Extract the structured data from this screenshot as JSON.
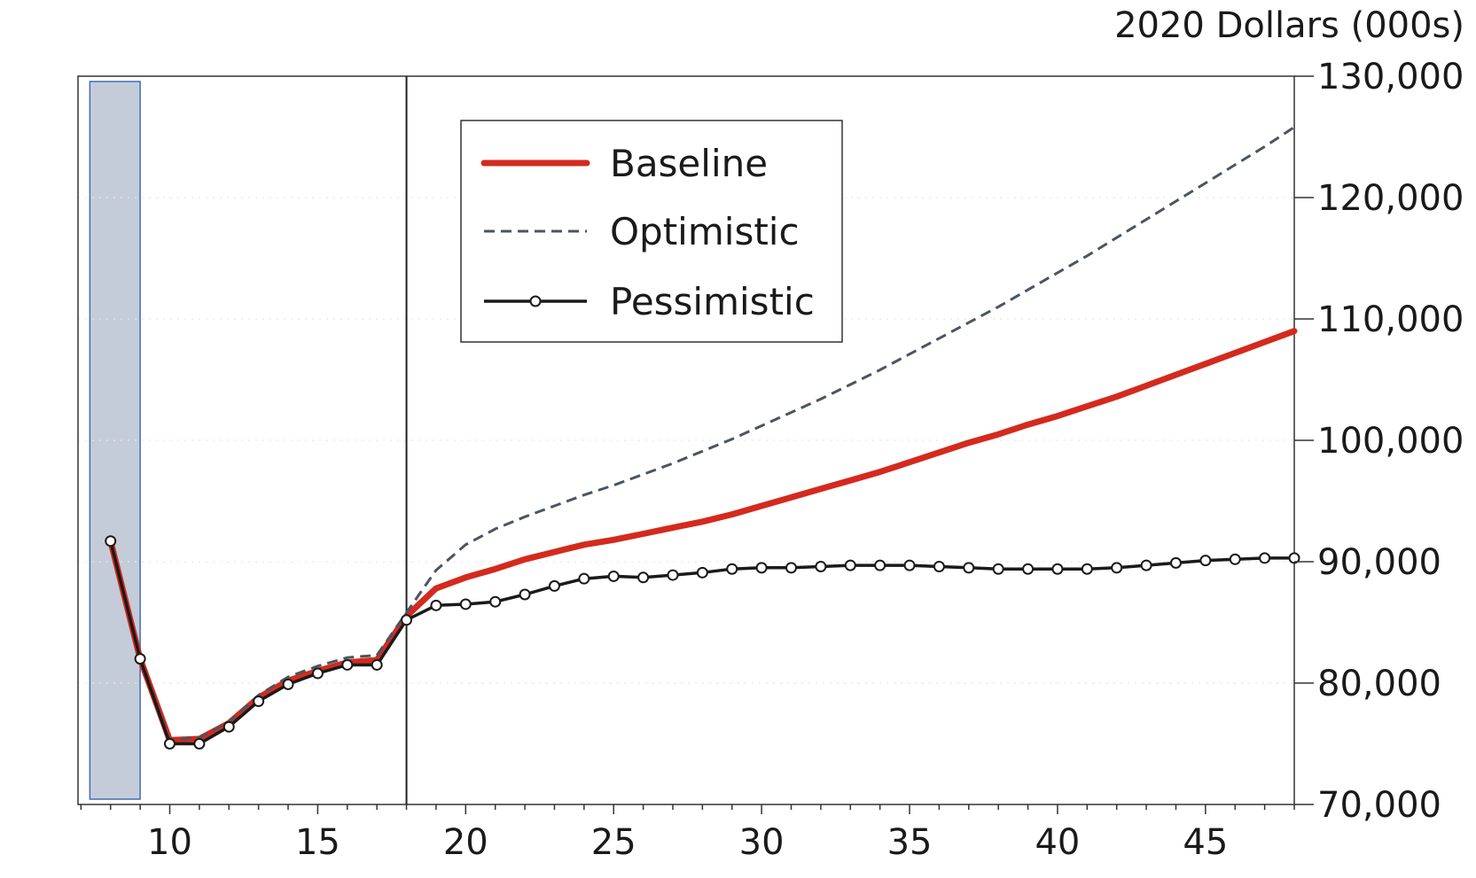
{
  "chart_data": {
    "type": "line",
    "unit_label": "2020 Dollars (000s)",
    "xlabel": "",
    "ylabel": "",
    "xlim": [
      6.9,
      48.0
    ],
    "ylim": [
      70000,
      130000
    ],
    "x_ticks": [
      10,
      15,
      20,
      25,
      30,
      35,
      40,
      45
    ],
    "y_ticks": [
      70000,
      80000,
      90000,
      100000,
      110000,
      120000,
      130000
    ],
    "y_tick_labels": [
      "70,000",
      "80,000",
      "90,000",
      "100,000",
      "110,000",
      "120,000",
      "130,000"
    ],
    "axis_side": "right",
    "grid": true,
    "legend_position": "top-center",
    "vertical_marker_x": 18,
    "shaded_region": [
      7.3,
      9.0
    ],
    "colors": {
      "baseline": "#d42a1e",
      "optimistic": "#4a5560",
      "pessimistic": "#1a1a1a",
      "shade": "#c5ccd9",
      "shade_border": "#3f6fb5"
    },
    "series": [
      {
        "name": "Baseline",
        "style": "solid-thick",
        "x": [
          8,
          9,
          10,
          11,
          12,
          13,
          14,
          15,
          16,
          17,
          18,
          19,
          20,
          21,
          22,
          23,
          24,
          25,
          26,
          27,
          28,
          29,
          30,
          31,
          32,
          33,
          34,
          35,
          36,
          37,
          38,
          39,
          40,
          41,
          42,
          43,
          44,
          45,
          46,
          47,
          48
        ],
        "values": [
          91700,
          82000,
          75300,
          75400,
          76700,
          78800,
          80200,
          81000,
          81700,
          81900,
          85500,
          87800,
          88700,
          89400,
          90200,
          90800,
          91400,
          91800,
          92300,
          92800,
          93300,
          93900,
          94600,
          95300,
          96000,
          96700,
          97400,
          98200,
          99000,
          99800,
          100500,
          101300,
          102000,
          102800,
          103600,
          104500,
          105400,
          106300,
          107200,
          108100,
          109000
        ]
      },
      {
        "name": "Optimistic",
        "style": "dashed",
        "x": [
          8,
          9,
          10,
          11,
          12,
          13,
          14,
          15,
          16,
          17,
          18,
          19,
          20,
          21,
          22,
          23,
          24,
          25,
          26,
          27,
          28,
          29,
          30,
          31,
          32,
          33,
          34,
          35,
          36,
          37,
          38,
          39,
          40,
          41,
          42,
          43,
          44,
          45,
          46,
          47,
          48
        ],
        "values": [
          91700,
          82000,
          75300,
          75500,
          76800,
          79000,
          80500,
          81400,
          82100,
          82300,
          85800,
          89300,
          91400,
          92700,
          93700,
          94600,
          95500,
          96300,
          97200,
          98100,
          99100,
          100100,
          101200,
          102300,
          103400,
          104600,
          105800,
          107100,
          108400,
          109700,
          111000,
          112400,
          113800,
          115200,
          116700,
          118200,
          119700,
          121200,
          122700,
          124200,
          125800
        ]
      },
      {
        "name": "Pessimistic",
        "style": "solid-markers",
        "x": [
          8,
          9,
          10,
          11,
          12,
          13,
          14,
          15,
          16,
          17,
          18,
          19,
          20,
          21,
          22,
          23,
          24,
          25,
          26,
          27,
          28,
          29,
          30,
          31,
          32,
          33,
          34,
          35,
          36,
          37,
          38,
          39,
          40,
          41,
          42,
          43,
          44,
          45,
          46,
          47,
          48
        ],
        "values": [
          91700,
          82000,
          75000,
          75000,
          76400,
          78500,
          79900,
          80800,
          81500,
          81500,
          85200,
          86400,
          86500,
          86700,
          87300,
          88000,
          88600,
          88800,
          88700,
          88900,
          89100,
          89400,
          89500,
          89500,
          89600,
          89700,
          89700,
          89700,
          89600,
          89500,
          89400,
          89400,
          89400,
          89400,
          89500,
          89700,
          89900,
          90100,
          90200,
          90300,
          90300
        ]
      }
    ]
  }
}
